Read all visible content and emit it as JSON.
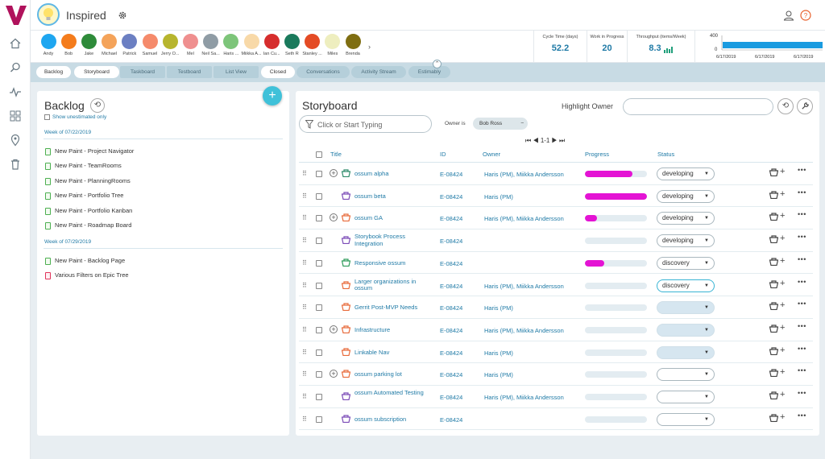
{
  "app": {
    "title": "Inspired"
  },
  "people": [
    {
      "name": "Andy",
      "color": "#1ea6f0"
    },
    {
      "name": "Bob",
      "color": "#f47c1c"
    },
    {
      "name": "Jake",
      "color": "#2e8b3a"
    },
    {
      "name": "Michael",
      "color": "#f4a35a"
    },
    {
      "name": "Patrick",
      "color": "#6b7fc2"
    },
    {
      "name": "Samuel",
      "color": "#f58a6b"
    },
    {
      "name": "Jerry O...",
      "color": "#b7b52e"
    },
    {
      "name": "Mel",
      "color": "#ef8f8f"
    },
    {
      "name": "Neil Sa...",
      "color": "#8f9ca5"
    },
    {
      "name": "Haris ...",
      "color": "#7dc57a"
    },
    {
      "name": "Miikka A...",
      "color": "#f8d9a8"
    },
    {
      "name": "Ian Cu...",
      "color": "#d62d2d"
    },
    {
      "name": "Seth R",
      "color": "#1a7a5c"
    },
    {
      "name": "Stanley ...",
      "color": "#e44b25"
    },
    {
      "name": "Miles",
      "color": "#eeeebf"
    },
    {
      "name": "Brenda",
      "color": "#7f6e12"
    }
  ],
  "metrics": {
    "cycle": {
      "label": "Cycle Time (days)",
      "value": "52.2"
    },
    "wip": {
      "label": "Work in Progress",
      "value": "20"
    },
    "throughput": {
      "label": "Throughput (items/Week)",
      "value": "8.3"
    },
    "chart": {
      "ymax": "400",
      "ymin": "0",
      "dates": [
        "6/17/2019",
        "6/17/2019",
        "6/17/2019"
      ]
    }
  },
  "tabs": [
    {
      "label": "Backlog",
      "active": true
    },
    {
      "label": "Storyboard",
      "active": true
    },
    {
      "label": "Taskboard",
      "active": false
    },
    {
      "label": "Testboard",
      "active": false
    },
    {
      "label": "List View",
      "active": false
    },
    {
      "label": "Closed",
      "active": true
    },
    {
      "label": "Conversations",
      "active": false
    },
    {
      "label": "Activity Stream",
      "active": false
    },
    {
      "label": "Estimably",
      "active": false
    }
  ],
  "backlog": {
    "title": "Backlog",
    "show_unestimated": "Show unestimated only",
    "weeks": [
      {
        "label": "Week of 07/22/2019",
        "items": [
          {
            "name": "New Paint - Project Navigator",
            "type": "story"
          },
          {
            "name": "New Paint - TeamRooms",
            "type": "story"
          },
          {
            "name": "New Paint - PlanningRooms",
            "type": "story"
          },
          {
            "name": "New Paint - Portfolio Tree",
            "type": "story"
          },
          {
            "name": "New Paint - Portfolio Kanban",
            "type": "story"
          },
          {
            "name": "New Paint - Roadmap Board",
            "type": "story"
          }
        ]
      },
      {
        "label": "Week of 07/29/2019",
        "items": [
          {
            "name": "New Paint - Backlog Page",
            "type": "story"
          },
          {
            "name": "Various Filters on Epic Tree",
            "type": "defect"
          }
        ]
      }
    ]
  },
  "storyboard": {
    "title": "Storyboard",
    "highlight_label": "Highlight Owner",
    "filter_placeholder": "Click or Start Typing",
    "owner_is": "Owner is",
    "owner_chip": "Bob Ross",
    "pager": "1-1",
    "columns": {
      "title": "Title",
      "id": "ID",
      "owner": "Owner",
      "progress": "Progress",
      "status": "Status"
    },
    "rows": [
      {
        "title": "ossum alpha",
        "id": "E-08424",
        "owner": "Haris (PM), Miikka Andersson",
        "progress": 0.77,
        "status": "developing",
        "expand": true,
        "color": "#2e8b6a"
      },
      {
        "title": "ossum beta",
        "id": "E-08424",
        "owner": "Haris (PM)",
        "progress": 1.0,
        "status": "developing",
        "expand": false,
        "color": "#7b4bb7"
      },
      {
        "title": "ossum GA",
        "id": "E-08424",
        "owner": "Haris (PM), Miikka Andersson",
        "progress": 0.2,
        "status": "developing",
        "expand": true,
        "color": "#e86a3a"
      },
      {
        "title": "Storybook Process Integration",
        "id": "E-08424",
        "owner": "",
        "progress": 0,
        "status": "developing",
        "expand": false,
        "color": "#7b4bb7"
      },
      {
        "title": "Responsive ossum",
        "id": "E-08424",
        "owner": "",
        "progress": 0.31,
        "status": "discovery",
        "expand": false,
        "color": "#2e9b5a"
      },
      {
        "title": "Larger organizations in ossum",
        "id": "E-08424",
        "owner": "Haris (PM), Miikka Andersson",
        "progress": 0,
        "status": "discovery",
        "expand": false,
        "color": "#e86a3a",
        "highlight": true
      },
      {
        "title": "Gerrit Post-MVP Needs",
        "id": "E-08424",
        "owner": "Haris (PM)",
        "progress": 0,
        "status": "",
        "expand": false,
        "color": "#e86a3a"
      },
      {
        "title": "Infrastructure",
        "id": "E-08424",
        "owner": "Haris (PM), Miikka Andersson",
        "progress": 0,
        "status": "",
        "expand": true,
        "color": "#e86a3a"
      },
      {
        "title": "Linkable Nav",
        "id": "E-08424",
        "owner": "Haris (PM)",
        "progress": 0,
        "status": "",
        "expand": false,
        "color": "#e86a3a"
      },
      {
        "title": "ossum parking lot",
        "id": "E-08424",
        "owner": "Haris (PM)",
        "progress": 0,
        "status": "",
        "expand": true,
        "color": "#e86a3a",
        "white": true
      },
      {
        "title": "ossum Automated Testing",
        "id": "E-08424",
        "owner": "Haris (PM), Miikka Andersson",
        "progress": 0,
        "status": "",
        "expand": false,
        "color": "#7b4bb7",
        "white": true
      },
      {
        "title": "ossum subscription",
        "id": "E-08424",
        "owner": "",
        "progress": 0,
        "status": "",
        "expand": false,
        "color": "#7b4bb7",
        "white": true
      }
    ]
  }
}
